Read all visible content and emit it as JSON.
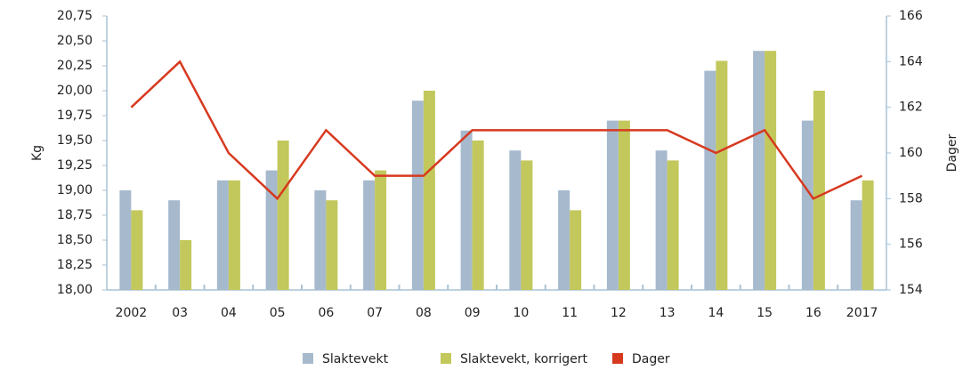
{
  "chart_data": {
    "type": "bar_line",
    "y_label": "Kg",
    "y2_label": "Dager",
    "categories": [
      "2002",
      "03",
      "04",
      "05",
      "06",
      "07",
      "08",
      "09",
      "10",
      "11",
      "12",
      "13",
      "14",
      "15",
      "16",
      "2017"
    ],
    "series": [
      {
        "name": "Slaktevekt",
        "type": "bar",
        "color": "#a6b9cd",
        "values": [
          19.0,
          18.9,
          19.1,
          19.2,
          19.0,
          19.1,
          19.9,
          19.6,
          19.4,
          19.0,
          19.7,
          19.4,
          20.2,
          20.4,
          19.7,
          18.9
        ]
      },
      {
        "name": "Slaktevekt, korrigert",
        "type": "bar",
        "color": "#c2c85c",
        "values": [
          18.8,
          18.5,
          19.1,
          19.5,
          18.9,
          19.2,
          20.0,
          19.5,
          19.3,
          18.8,
          19.7,
          19.3,
          20.3,
          20.4,
          20.0,
          19.1
        ]
      },
      {
        "name": "Dager",
        "type": "line",
        "axis": "y2",
        "color": "#d7391f",
        "values": [
          162,
          164,
          160,
          158,
          161,
          159,
          159,
          161,
          161,
          161,
          161,
          161,
          160,
          161,
          158,
          159
        ]
      }
    ],
    "ylim": [
      18,
      20.75
    ],
    "yticks": [
      {
        "value": 18,
        "label": "18,00"
      },
      {
        "value": 18.25,
        "label": "18,25"
      },
      {
        "value": 18.5,
        "label": "18,50"
      },
      {
        "value": 18.75,
        "label": "18,75"
      },
      {
        "value": 19,
        "label": "19,00"
      },
      {
        "value": 19.25,
        "label": "19,25"
      },
      {
        "value": 19.5,
        "label": "19,50"
      },
      {
        "value": 19.75,
        "label": "19,75"
      },
      {
        "value": 20,
        "label": "20,00"
      },
      {
        "value": 20.25,
        "label": "20,25"
      },
      {
        "value": 20.5,
        "label": "20,50"
      },
      {
        "value": 20.75,
        "label": "20,75"
      }
    ],
    "y2lim": [
      154,
      166
    ],
    "y2ticks": [
      154,
      156,
      158,
      160,
      162,
      164,
      166
    ],
    "grid": false,
    "legend": "bottom"
  }
}
